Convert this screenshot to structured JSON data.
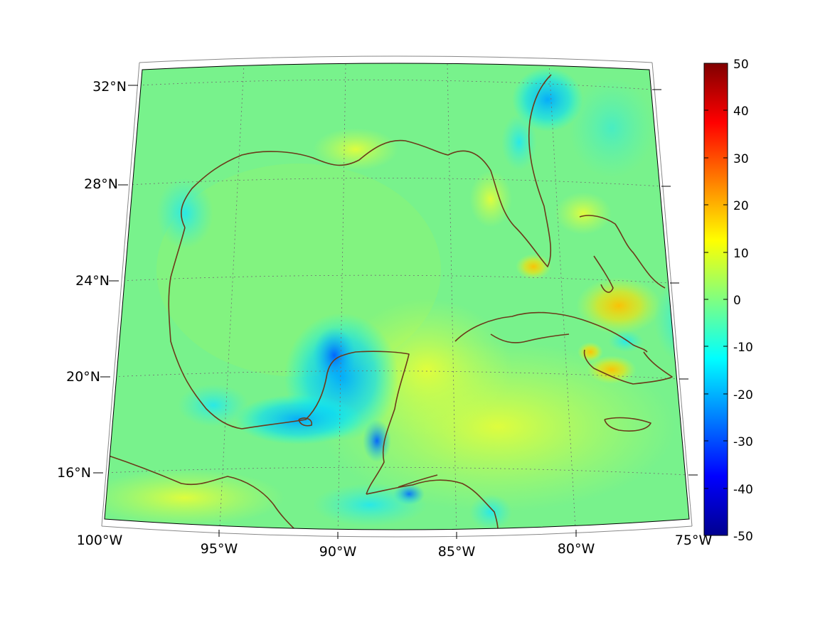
{
  "map": {
    "lon_labels": [
      "100°W",
      "95°W",
      "90°W",
      "85°W",
      "80°W",
      "75°W"
    ],
    "lat_labels": [
      "16°N",
      "20°N",
      "24°N",
      "28°N",
      "32°N"
    ]
  },
  "colorbar": {
    "ticks": [
      "50",
      "40",
      "30",
      "20",
      "10",
      "0",
      "-10",
      "-20",
      "-30",
      "-40",
      "-50"
    ],
    "colormap": [
      "#00008f",
      "#0000ff",
      "#0080ff",
      "#00ffff",
      "#80ff80",
      "#ffff00",
      "#ff8000",
      "#ff0000",
      "#800000"
    ]
  }
}
